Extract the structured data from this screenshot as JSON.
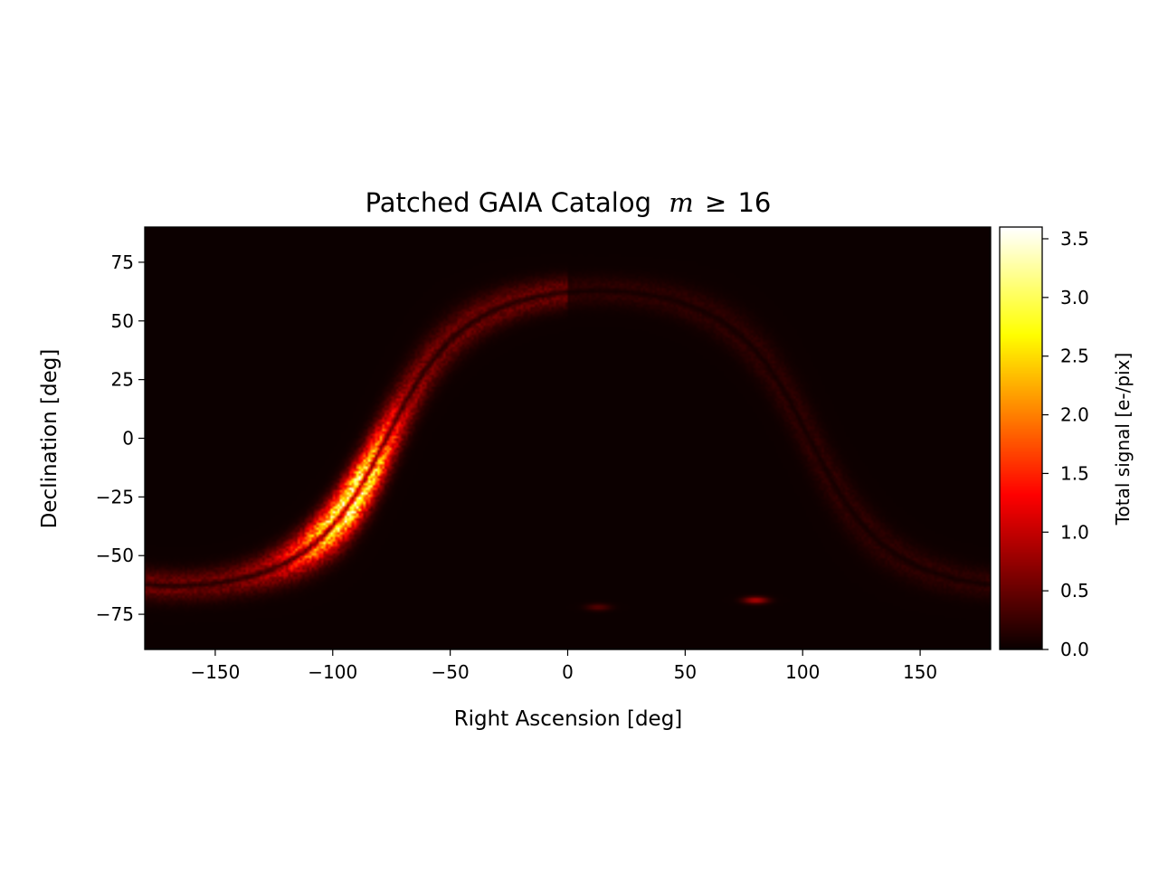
{
  "chart_data": {
    "type": "heatmap",
    "title_prefix": "Patched GAIA Catalog",
    "title_math_var": "m",
    "title_math_rel": "≥",
    "title_math_num": "16",
    "xlabel": "Right Ascension [deg]",
    "ylabel": "Declination [deg]",
    "xlim": [
      -180,
      180
    ],
    "ylim": [
      -90,
      90
    ],
    "xticks": [
      -150,
      -100,
      -50,
      0,
      50,
      100,
      150
    ],
    "xtick_labels": [
      "−150",
      "−100",
      "−50",
      "0",
      "50",
      "100",
      "150"
    ],
    "yticks": [
      75,
      50,
      25,
      0,
      -25,
      -50,
      -75
    ],
    "ytick_labels": [
      "75",
      "50",
      "25",
      "0",
      "−25",
      "−50",
      "−75"
    ],
    "colormap": "hot",
    "colorbar": {
      "label": "Total signal [e-/pix]",
      "range": [
        0.0,
        3.6
      ],
      "ticks": [
        0.0,
        0.5,
        1.0,
        1.5,
        2.0,
        2.5,
        3.0,
        3.5
      ],
      "tick_labels": [
        "0.0",
        "0.5",
        "1.0",
        "1.5",
        "2.0",
        "2.5",
        "3.0",
        "3.5"
      ]
    },
    "features": [
      {
        "name": "galactic plane band",
        "peak_value": 3.5,
        "peak_ra": -92,
        "peak_dec": -27
      },
      {
        "name": "Large Magellanic Cloud",
        "ra": 80,
        "dec": -69,
        "value": 0.9
      },
      {
        "name": "Small Magellanic Cloud",
        "ra": 13,
        "dec": -72,
        "value": 0.4
      }
    ]
  }
}
